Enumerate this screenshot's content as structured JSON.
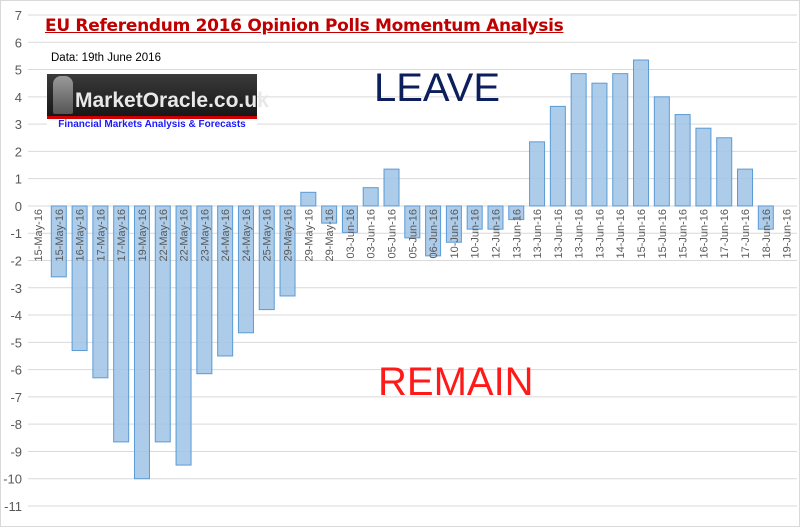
{
  "chart_data": {
    "type": "bar",
    "title": "EU Referendum 2016 Opinion Polls Momentum Analysis",
    "subtitle": "Data: 19th June 2016",
    "annotations": {
      "leave": "LEAVE",
      "remain": "REMAIN"
    },
    "logo": {
      "name": "MarketOracle.co.uk",
      "tagline": "Financial Markets Analysis & Forecasts"
    },
    "xlabel": "",
    "ylabel": "",
    "ylim": [
      -11,
      7
    ],
    "yticks": [
      7,
      6,
      5,
      4,
      3,
      2,
      1,
      0,
      -1,
      -2,
      -3,
      -4,
      -5,
      -6,
      -7,
      -8,
      -9,
      -10,
      -11
    ],
    "grid": true,
    "bar_color": "#9dc3e6",
    "categories": [
      "15-May-16",
      "15-May-16",
      "16-May-16",
      "17-May-16",
      "17-May-16",
      "19-May-16",
      "22-May-16",
      "22-May-16",
      "23-May-16",
      "24-May-16",
      "24-May-16",
      "25-May-16",
      "29-May-16",
      "29-May-16",
      "29-May-16",
      "03-Jun-16",
      "03-Jun-16",
      "05-Jun-16",
      "05-Jun-16",
      "06-Jun-16",
      "10-Jun-16",
      "10-Jun-16",
      "12-Jun-16",
      "13-Jun-16",
      "13-Jun-16",
      "13-Jun-16",
      "13-Jun-16",
      "13-Jun-16",
      "14-Jun-16",
      "15-Jun-16",
      "15-Jun-16",
      "15-Jun-16",
      "16-Jun-16",
      "17-Jun-16",
      "17-Jun-16",
      "18-Jun-16",
      "19-Jun-16"
    ],
    "values": [
      0,
      -2.6,
      -5.3,
      -6.3,
      -8.65,
      -10,
      -8.65,
      -9.5,
      -6.15,
      -5.5,
      -4.65,
      -3.8,
      -3.3,
      0.5,
      -0.63,
      -0.97,
      0.67,
      1.35,
      -1.17,
      -1.83,
      -1.33,
      -0.85,
      -0.85,
      -0.5,
      2.35,
      3.65,
      4.85,
      4.5,
      4.85,
      5.35,
      4.0,
      3.35,
      2.85,
      2.5,
      1.35,
      -0.85,
      0
    ]
  }
}
